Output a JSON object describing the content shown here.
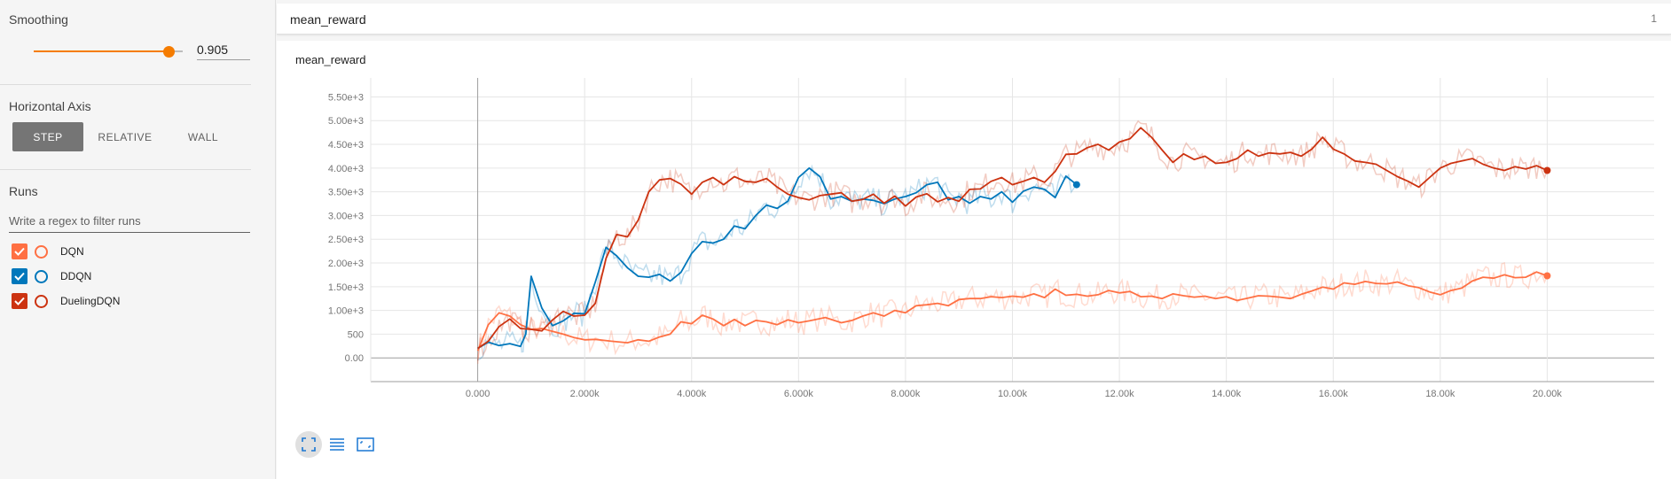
{
  "sidebar": {
    "smoothing": {
      "title": "Smoothing",
      "value": "0.905",
      "fraction": 0.905
    },
    "horizontal_axis": {
      "title": "Horizontal Axis",
      "options": [
        "STEP",
        "RELATIVE",
        "WALL"
      ],
      "selected": "STEP"
    },
    "runs": {
      "title": "Runs",
      "filter_placeholder": "Write a regex to filter runs",
      "items": [
        {
          "label": "DQN",
          "color": "#ff7043",
          "checked": true
        },
        {
          "label": "DDQN",
          "color": "#0077bb",
          "checked": true
        },
        {
          "label": "DuelingDQN",
          "color": "#cc3311",
          "checked": true
        }
      ]
    }
  },
  "card": {
    "title": "mean_reward",
    "count": "1"
  },
  "toolbar": {
    "icons": [
      "fit-domain-icon",
      "data-selection-icon",
      "log-scale-icon"
    ]
  },
  "chart_data": {
    "type": "line",
    "title": "mean_reward",
    "xlim": [
      -2000,
      22000
    ],
    "ylim": [
      -500,
      5900
    ],
    "x_ticks": [
      "0.000",
      "2.000k",
      "4.000k",
      "6.000k",
      "8.000k",
      "10.00k",
      "12.00k",
      "14.00k",
      "16.00k",
      "18.00k",
      "20.00k"
    ],
    "y_ticks": [
      "0.00",
      "500",
      "1.00e+3",
      "1.50e+3",
      "2.00e+3",
      "2.50e+3",
      "3.00e+3",
      "3.50e+3",
      "4.00e+3",
      "4.50e+3",
      "5.00e+3",
      "5.50e+3"
    ],
    "grid": true,
    "series": [
      {
        "name": "DQN",
        "color": "#ff7043",
        "x": [
          0,
          200,
          400,
          600,
          800,
          1000,
          1200,
          1400,
          1600,
          1800,
          2000,
          2200,
          2500,
          2800,
          3000,
          3200,
          3400,
          3600,
          3800,
          4000,
          4200,
          4400,
          4600,
          4800,
          5000,
          5200,
          5400,
          5600,
          5800,
          6000,
          6200,
          6500,
          6800,
          7000,
          7200,
          7400,
          7600,
          7800,
          8000,
          8200,
          8400,
          8600,
          8800,
          9000,
          9200,
          9400,
          9600,
          9800,
          10000,
          10200,
          10400,
          10600,
          10800,
          11000,
          11200,
          11400,
          11600,
          11800,
          12000,
          12200,
          12400,
          12600,
          12800,
          13000,
          13200,
          13400,
          13600,
          13800,
          14000,
          14200,
          14400,
          14600,
          14800,
          15000,
          15200,
          15400,
          15600,
          15800,
          16000,
          16200,
          16400,
          16600,
          16800,
          17000,
          17200,
          17400,
          17600,
          17800,
          18000,
          18200,
          18400,
          18600,
          18800,
          19000,
          19200,
          19400,
          19600,
          19800,
          20000
        ],
        "y": [
          150,
          700,
          950,
          880,
          700,
          600,
          620,
          560,
          500,
          430,
          380,
          390,
          350,
          320,
          380,
          350,
          440,
          500,
          760,
          720,
          900,
          820,
          680,
          810,
          680,
          790,
          760,
          700,
          800,
          740,
          780,
          850,
          740,
          790,
          880,
          950,
          880,
          1000,
          950,
          1100,
          1120,
          1150,
          1100,
          1230,
          1250,
          1250,
          1290,
          1270,
          1300,
          1280,
          1350,
          1270,
          1450,
          1320,
          1340,
          1300,
          1330,
          1420,
          1370,
          1400,
          1290,
          1300,
          1250,
          1350,
          1310,
          1280,
          1300,
          1250,
          1290,
          1210,
          1260,
          1310,
          1300,
          1280,
          1250,
          1340,
          1410,
          1490,
          1450,
          1580,
          1550,
          1610,
          1570,
          1560,
          1600,
          1520,
          1480,
          1390,
          1330,
          1420,
          1470,
          1620,
          1700,
          1680,
          1750,
          1690,
          1700,
          1810,
          1730
        ]
      },
      {
        "name": "DDQN",
        "color": "#0077bb",
        "x": [
          0,
          200,
          400,
          600,
          800,
          900,
          1000,
          1200,
          1400,
          1600,
          1800,
          2000,
          2200,
          2400,
          2600,
          2800,
          3000,
          3200,
          3400,
          3600,
          3800,
          4000,
          4200,
          4400,
          4600,
          4800,
          5000,
          5200,
          5400,
          5600,
          5800,
          6000,
          6200,
          6400,
          6600,
          6800,
          7000,
          7200,
          7400,
          7600,
          7800,
          8000,
          8200,
          8400,
          8600,
          8800,
          9000,
          9200,
          9400,
          9600,
          9800,
          10000,
          10200,
          10400,
          10600,
          10800,
          11000,
          11200
        ],
        "y": [
          200,
          330,
          260,
          300,
          240,
          500,
          1720,
          1050,
          680,
          780,
          940,
          930,
          1600,
          2330,
          2150,
          1900,
          1720,
          1700,
          1760,
          1620,
          1800,
          2200,
          2450,
          2420,
          2500,
          2780,
          2720,
          3000,
          3220,
          3150,
          3300,
          3800,
          4000,
          3820,
          3350,
          3400,
          3300,
          3350,
          3320,
          3250,
          3350,
          3400,
          3480,
          3650,
          3700,
          3330,
          3400,
          3260,
          3400,
          3350,
          3500,
          3280,
          3510,
          3600,
          3550,
          3380,
          3830,
          3650
        ]
      },
      {
        "name": "DuelingDQN",
        "color": "#cc3311",
        "x": [
          0,
          200,
          400,
          600,
          800,
          1000,
          1200,
          1400,
          1600,
          1800,
          2000,
          2200,
          2400,
          2600,
          2800,
          3000,
          3200,
          3400,
          3600,
          3800,
          4000,
          4200,
          4400,
          4600,
          4800,
          5000,
          5200,
          5400,
          5600,
          5800,
          6000,
          6200,
          6400,
          6600,
          6800,
          7000,
          7200,
          7400,
          7600,
          7800,
          8000,
          8200,
          8400,
          8600,
          8800,
          9000,
          9200,
          9400,
          9600,
          9800,
          10000,
          10200,
          10400,
          10600,
          10800,
          11000,
          11200,
          11400,
          11600,
          11800,
          12000,
          12200,
          12400,
          12600,
          12800,
          13000,
          13200,
          13400,
          13600,
          13800,
          14000,
          14200,
          14400,
          14600,
          14800,
          15000,
          15200,
          15400,
          15600,
          15800,
          16000,
          16200,
          16400,
          16600,
          16800,
          17000,
          17200,
          17400,
          17600,
          17800,
          18000,
          18200,
          18400,
          18600,
          18800,
          19000,
          19200,
          19400,
          19600,
          19800,
          20000
        ],
        "y": [
          200,
          350,
          660,
          820,
          620,
          600,
          570,
          800,
          980,
          880,
          900,
          1150,
          2100,
          2600,
          2550,
          2900,
          3500,
          3750,
          3780,
          3660,
          3450,
          3700,
          3800,
          3650,
          3820,
          3720,
          3700,
          3780,
          3600,
          3450,
          3380,
          3330,
          3420,
          3450,
          3480,
          3300,
          3340,
          3450,
          3260,
          3410,
          3200,
          3390,
          3460,
          3290,
          3380,
          3300,
          3550,
          3560,
          3720,
          3800,
          3650,
          3720,
          3800,
          3700,
          3930,
          4290,
          4300,
          4430,
          4500,
          4380,
          4550,
          4620,
          4850,
          4650,
          4380,
          4120,
          4300,
          4180,
          4250,
          4100,
          4120,
          4200,
          4380,
          4250,
          4320,
          4300,
          4330,
          4250,
          4400,
          4650,
          4400,
          4300,
          4150,
          4120,
          4080,
          3950,
          3820,
          3720,
          3600,
          3800,
          4000,
          4100,
          4150,
          4200,
          4080,
          4000,
          3950,
          4030,
          3980,
          4050,
          3950
        ]
      }
    ]
  }
}
